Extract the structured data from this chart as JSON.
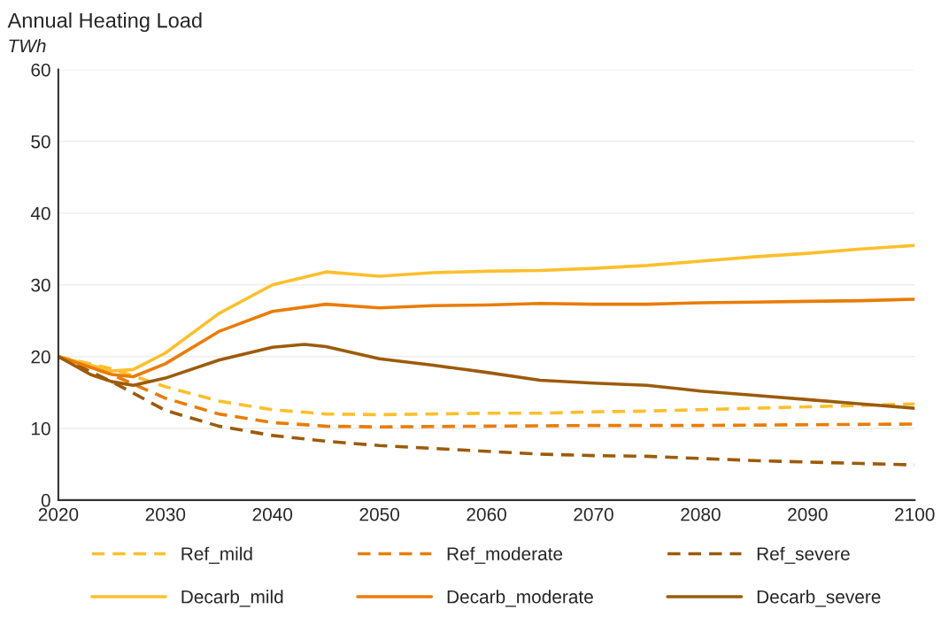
{
  "chart_data": {
    "type": "line",
    "title": "Annual Heating Load",
    "ylabel": "TWh",
    "xlim": [
      2020,
      2100
    ],
    "ylim": [
      0,
      60
    ],
    "xticks": [
      2020,
      2030,
      2040,
      2050,
      2060,
      2070,
      2080,
      2090,
      2100
    ],
    "yticks": [
      0,
      10,
      20,
      30,
      40,
      50,
      60
    ],
    "grid": "y",
    "legend": "bottom",
    "marker": "none",
    "series": [
      {
        "name": "Ref_mild",
        "color": "#fdbf2d",
        "line_style": "dashed",
        "x": [
          2020,
          2025,
          2030,
          2035,
          2040,
          2045,
          2050,
          2055,
          2060,
          2065,
          2070,
          2075,
          2080,
          2085,
          2090,
          2095,
          2100
        ],
        "values": [
          20,
          18.3,
          15.8,
          13.8,
          12.6,
          12.0,
          11.9,
          12.0,
          12.1,
          12.1,
          12.3,
          12.4,
          12.6,
          12.8,
          13.0,
          13.2,
          13.4
        ]
      },
      {
        "name": "Ref_moderate",
        "color": "#e97c07",
        "line_style": "dashed",
        "x": [
          2020,
          2025,
          2030,
          2035,
          2040,
          2045,
          2050,
          2060,
          2070,
          2080,
          2090,
          2100
        ],
        "values": [
          20,
          17.5,
          14.2,
          12.0,
          10.8,
          10.3,
          10.2,
          10.3,
          10.4,
          10.4,
          10.5,
          10.6
        ]
      },
      {
        "name": "Ref_severe",
        "color": "#9c5b0a",
        "line_style": "dashed",
        "x": [
          2020,
          2025,
          2030,
          2035,
          2040,
          2045,
          2050,
          2055,
          2060,
          2065,
          2070,
          2075,
          2080,
          2085,
          2090,
          2095,
          2100
        ],
        "values": [
          20,
          16.5,
          12.5,
          10.3,
          9.0,
          8.2,
          7.6,
          7.2,
          6.8,
          6.4,
          6.2,
          6.1,
          5.8,
          5.5,
          5.3,
          5.1,
          4.9
        ]
      },
      {
        "name": "Decarb_mild",
        "color": "#fdbf2d",
        "line_style": "solid",
        "x": [
          2020,
          2025,
          2027,
          2030,
          2035,
          2040,
          2045,
          2050,
          2055,
          2060,
          2065,
          2070,
          2075,
          2080,
          2085,
          2090,
          2095,
          2100
        ],
        "values": [
          20,
          18,
          18.2,
          20.5,
          26,
          30,
          31.8,
          31.2,
          31.7,
          31.9,
          32,
          32.3,
          32.7,
          33.3,
          33.9,
          34.4,
          35,
          35.5
        ]
      },
      {
        "name": "Decarb_moderate",
        "color": "#e97c07",
        "line_style": "solid",
        "x": [
          2020,
          2025,
          2027,
          2030,
          2035,
          2040,
          2045,
          2050,
          2055,
          2060,
          2065,
          2070,
          2075,
          2080,
          2085,
          2090,
          2095,
          2100
        ],
        "values": [
          20,
          17.5,
          17.2,
          19,
          23.5,
          26.3,
          27.3,
          26.8,
          27.1,
          27.2,
          27.4,
          27.3,
          27.3,
          27.5,
          27.6,
          27.7,
          27.8,
          28
        ]
      },
      {
        "name": "Decarb_severe",
        "color": "#9c5b0a",
        "line_style": "solid",
        "x": [
          2020,
          2023,
          2025,
          2027,
          2030,
          2035,
          2040,
          2043,
          2045,
          2050,
          2055,
          2060,
          2065,
          2070,
          2075,
          2080,
          2085,
          2090,
          2095,
          2100
        ],
        "values": [
          20,
          17.5,
          16.5,
          16.0,
          17,
          19.5,
          21.3,
          21.7,
          21.4,
          19.7,
          18.8,
          17.8,
          16.7,
          16.3,
          16,
          15.2,
          14.6,
          14,
          13.4,
          12.8
        ]
      }
    ]
  }
}
